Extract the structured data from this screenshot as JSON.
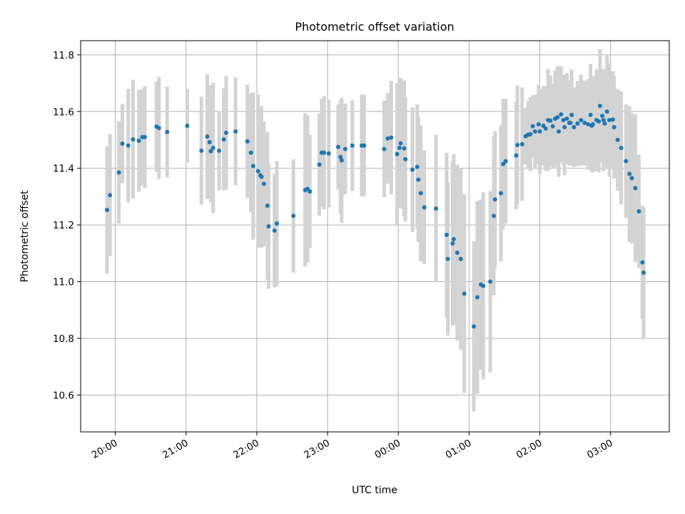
{
  "chart_data": {
    "type": "scatter",
    "title": "Photometric offset variation",
    "xlabel": "UTC time",
    "ylabel": "Photometric offset",
    "xlim_hours": [
      19.51,
      27.83
    ],
    "ylim": [
      10.47,
      11.85
    ],
    "xticks": [
      {
        "hour": 20,
        "label": "20:00"
      },
      {
        "hour": 21,
        "label": "21:00"
      },
      {
        "hour": 22,
        "label": "22:00"
      },
      {
        "hour": 23,
        "label": "23:00"
      },
      {
        "hour": 24,
        "label": "00:00"
      },
      {
        "hour": 25,
        "label": "01:00"
      },
      {
        "hour": 26,
        "label": "02:00"
      },
      {
        "hour": 27,
        "label": "03:00"
      }
    ],
    "yticks": [
      {
        "value": 10.6,
        "label": "10.6"
      },
      {
        "value": 10.8,
        "label": "10.8"
      },
      {
        "value": 11.0,
        "label": "11.0"
      },
      {
        "value": 11.2,
        "label": "11.2"
      },
      {
        "value": 11.4,
        "label": "11.4"
      },
      {
        "value": 11.6,
        "label": "11.6"
      },
      {
        "value": 11.8,
        "label": "11.8"
      }
    ],
    "grid": true,
    "colors": {
      "point": "#1f77b4",
      "errorbar": "#d3d3d3",
      "grid": "#b0b0b0"
    },
    "x_hours": [
      19.883,
      19.925,
      20.05,
      20.1,
      20.183,
      20.25,
      20.333,
      20.383,
      20.417,
      20.583,
      20.617,
      20.733,
      21.017,
      21.217,
      21.3,
      21.333,
      21.35,
      21.383,
      21.467,
      21.533,
      21.567,
      21.7,
      21.867,
      21.917,
      21.95,
      22.017,
      22.05,
      22.067,
      22.1,
      22.15,
      22.167,
      22.25,
      22.283,
      22.517,
      22.683,
      22.717,
      22.75,
      22.883,
      22.917,
      22.95,
      23.017,
      23.15,
      23.183,
      23.2,
      23.25,
      23.35,
      23.483,
      23.517,
      23.8,
      23.85,
      23.9,
      23.983,
      24.017,
      24.033,
      24.083,
      24.1,
      24.2,
      24.267,
      24.283,
      24.317,
      24.367,
      24.533,
      24.683,
      24.7,
      24.767,
      24.783,
      24.833,
      24.883,
      24.933,
      25.067,
      25.117,
      25.167,
      25.2,
      25.3,
      25.35,
      25.367,
      25.45,
      25.483,
      25.517,
      25.667,
      25.683,
      25.75,
      25.8,
      25.833,
      25.867,
      25.9,
      25.933,
      25.983,
      26.0,
      26.05,
      26.083,
      26.117,
      26.15,
      26.183,
      26.217,
      26.25,
      26.267,
      26.3,
      26.333,
      26.35,
      26.383,
      26.417,
      26.433,
      26.45,
      26.483,
      26.533,
      26.583,
      26.633,
      26.683,
      26.717,
      26.733,
      26.75,
      26.8,
      26.833,
      26.85,
      26.883,
      26.9,
      26.917,
      26.95,
      26.983,
      27.033,
      27.05,
      27.1,
      27.15,
      27.217,
      27.267,
      27.3,
      27.35,
      27.4,
      27.45,
      27.467
    ],
    "y": [
      11.253,
      11.305,
      11.385,
      11.487,
      11.48,
      11.502,
      11.497,
      11.51,
      11.51,
      11.547,
      11.542,
      11.528,
      11.55,
      11.462,
      11.512,
      11.492,
      11.46,
      11.472,
      11.462,
      11.502,
      11.525,
      11.53,
      11.495,
      11.455,
      11.408,
      11.39,
      11.375,
      11.37,
      11.345,
      11.268,
      11.195,
      11.18,
      11.205,
      11.232,
      11.323,
      11.327,
      11.318,
      11.413,
      11.455,
      11.455,
      11.452,
      11.475,
      11.44,
      11.428,
      11.468,
      11.48,
      11.48,
      11.48,
      11.468,
      11.505,
      11.508,
      11.45,
      11.472,
      11.488,
      11.47,
      11.432,
      11.395,
      11.405,
      11.36,
      11.312,
      11.262,
      11.258,
      11.165,
      11.08,
      11.135,
      11.15,
      11.102,
      11.08,
      10.958,
      10.842,
      10.945,
      10.99,
      10.985,
      11.0,
      11.232,
      11.29,
      11.312,
      11.415,
      11.425,
      11.445,
      11.482,
      11.485,
      11.513,
      11.518,
      11.52,
      11.548,
      11.53,
      11.555,
      11.53,
      11.55,
      11.54,
      11.57,
      11.568,
      11.548,
      11.575,
      11.58,
      11.53,
      11.59,
      11.57,
      11.545,
      11.575,
      11.56,
      11.56,
      11.588,
      11.545,
      11.558,
      11.57,
      11.56,
      11.555,
      11.588,
      11.55,
      11.555,
      11.57,
      11.565,
      11.62,
      11.585,
      11.57,
      11.558,
      11.6,
      11.57,
      11.572,
      11.545,
      11.5,
      11.472,
      11.425,
      11.38,
      11.365,
      11.33,
      11.248,
      11.068,
      11.032
    ],
    "error": [
      0.225,
      0.215,
      0.18,
      0.14,
      0.2,
      0.21,
      0.18,
      0.17,
      0.18,
      0.16,
      0.18,
      0.16,
      0.13,
      0.19,
      0.22,
      0.2,
      0.18,
      0.23,
      0.14,
      0.18,
      0.2,
      0.19,
      0.2,
      0.21,
      0.26,
      0.27,
      0.23,
      0.25,
      0.22,
      0.26,
      0.22,
      0.2,
      0.22,
      0.2,
      0.27,
      0.26,
      0.2,
      0.18,
      0.19,
      0.2,
      0.19,
      0.15,
      0.2,
      0.22,
      0.16,
      0.16,
      0.18,
      0.18,
      0.17,
      0.16,
      0.2,
      0.25,
      0.17,
      0.23,
      0.24,
      0.22,
      0.22,
      0.22,
      0.22,
      0.24,
      0.2,
      0.26,
      0.29,
      0.27,
      0.29,
      0.3,
      0.31,
      0.32,
      0.35,
      0.3,
      0.34,
      0.3,
      0.33,
      0.32,
      0.28,
      0.24,
      0.24,
      0.23,
      0.22,
      0.19,
      0.21,
      0.2,
      0.1,
      0.12,
      0.13,
      0.11,
      0.13,
      0.14,
      0.15,
      0.14,
      0.15,
      0.18,
      0.16,
      0.15,
      0.17,
      0.18,
      0.16,
      0.17,
      0.16,
      0.17,
      0.16,
      0.15,
      0.15,
      0.16,
      0.14,
      0.15,
      0.16,
      0.15,
      0.16,
      0.18,
      0.16,
      0.17,
      0.18,
      0.18,
      0.2,
      0.16,
      0.18,
      0.16,
      0.2,
      0.2,
      0.17,
      0.18,
      0.18,
      0.2,
      0.2,
      0.24,
      0.23,
      0.26,
      0.2,
      0.2,
      0.23
    ]
  }
}
